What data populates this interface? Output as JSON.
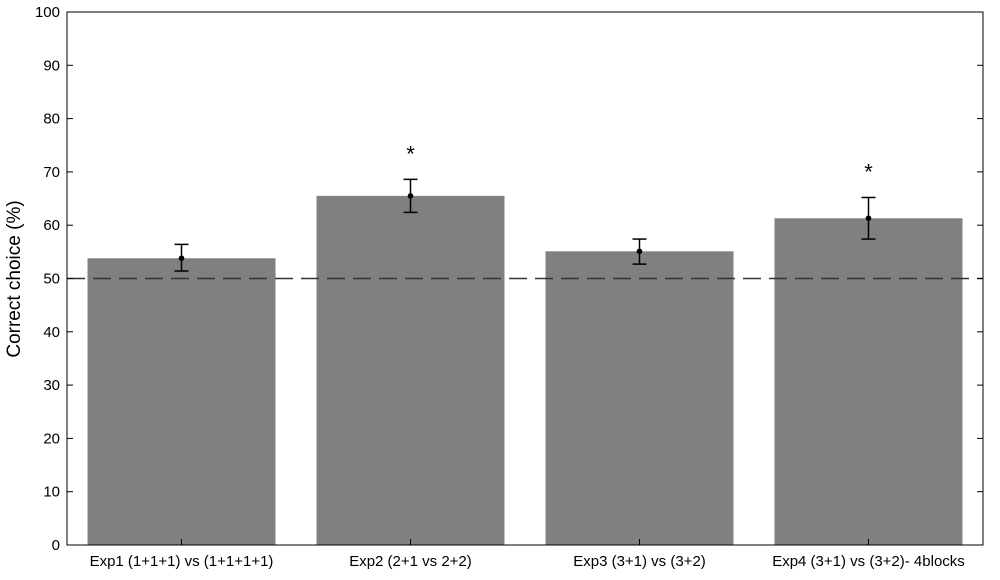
{
  "chart_data": {
    "type": "bar",
    "title": "",
    "xlabel": "",
    "ylabel": "Correct choice (%)",
    "ylim": [
      0,
      100
    ],
    "yticks": [
      0,
      10,
      20,
      30,
      40,
      50,
      60,
      70,
      80,
      90,
      100
    ],
    "categories": [
      "Exp1 (1+1+1) vs (1+1+1+1)",
      "Exp2 (2+1 vs 2+2)",
      "Exp3 (3+1) vs (3+2)",
      "Exp4 (3+1) vs (3+2)- 4blocks"
    ],
    "values": [
      53.8,
      65.5,
      55.1,
      61.3
    ],
    "error_low": [
      51.4,
      62.4,
      52.7,
      57.4
    ],
    "error_high": [
      56.4,
      68.6,
      57.4,
      65.2
    ],
    "significance": [
      "",
      "*",
      "",
      "*"
    ],
    "reference_line": 50,
    "bar_color": "#808080",
    "grid": false,
    "legend": "none"
  }
}
